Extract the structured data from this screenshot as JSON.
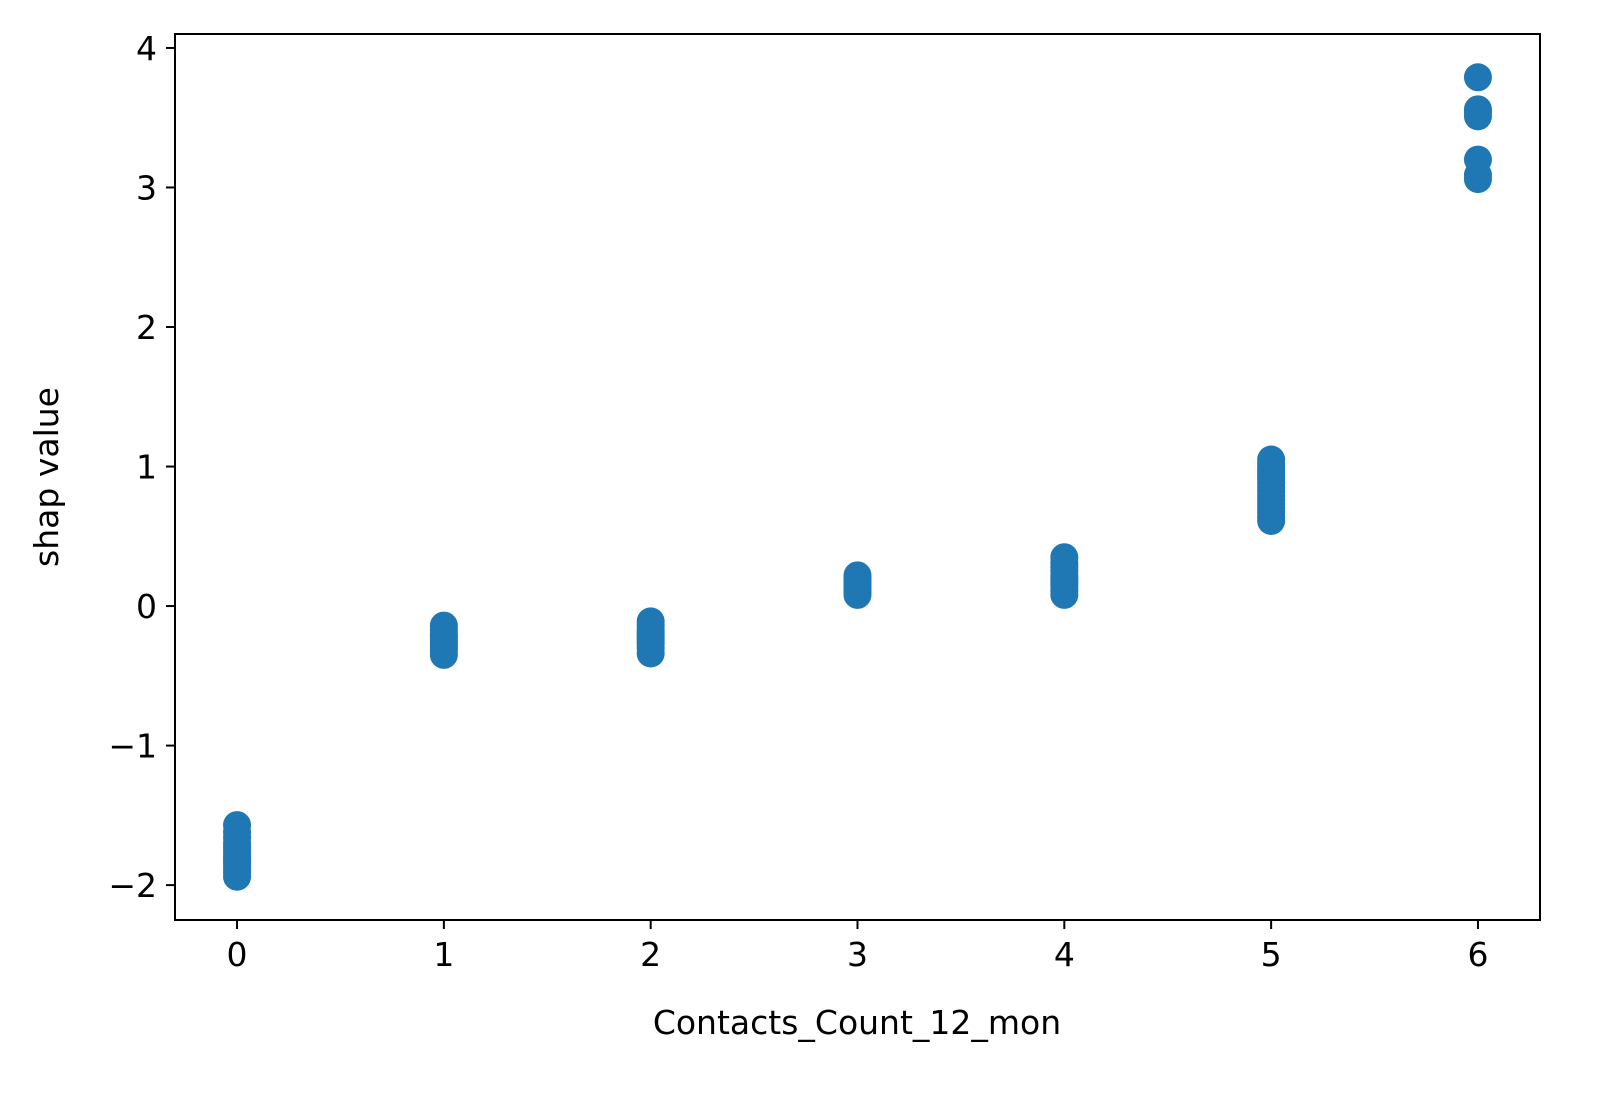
{
  "chart_data": {
    "type": "scatter",
    "title": "",
    "xlabel": "Contacts_Count_12_mon",
    "ylabel": "shap value",
    "xlim": [
      -0.3,
      6.3
    ],
    "ylim": [
      -2.25,
      4.1
    ],
    "grid": false,
    "legend": "none",
    "marker_color": "#1f77b4",
    "x_ticks": [
      {
        "value": 0,
        "label": "0"
      },
      {
        "value": 1,
        "label": "1"
      },
      {
        "value": 2,
        "label": "2"
      },
      {
        "value": 3,
        "label": "3"
      },
      {
        "value": 4,
        "label": "4"
      },
      {
        "value": 5,
        "label": "5"
      },
      {
        "value": 6,
        "label": "6"
      }
    ],
    "y_ticks": [
      {
        "value": -2,
        "label": "−2"
      },
      {
        "value": -1,
        "label": "−1"
      },
      {
        "value": 0,
        "label": "0"
      },
      {
        "value": 1,
        "label": "1"
      },
      {
        "value": 2,
        "label": "2"
      },
      {
        "value": 3,
        "label": "3"
      },
      {
        "value": 4,
        "label": "4"
      }
    ],
    "series": [
      {
        "x": [
          0,
          0,
          0,
          0,
          0,
          0,
          0,
          0,
          0,
          0,
          0,
          0,
          0,
          1,
          1,
          1,
          1,
          1,
          1,
          1,
          1,
          1,
          1,
          2,
          2,
          2,
          2,
          2,
          2,
          2,
          2,
          2,
          2,
          3,
          3,
          3,
          3,
          3,
          3,
          3,
          3,
          4,
          4,
          4,
          4,
          4,
          4,
          4,
          4,
          4,
          4,
          4,
          5,
          5,
          5,
          5,
          5,
          5,
          5,
          5,
          5,
          5,
          5,
          5,
          5,
          5,
          5,
          5,
          5,
          6,
          6,
          6,
          6,
          6,
          6,
          6
        ],
        "y": [
          -1.57,
          -1.62,
          -1.66,
          -1.7,
          -1.73,
          -1.76,
          -1.79,
          -1.81,
          -1.83,
          -1.85,
          -1.88,
          -1.91,
          -1.94,
          -0.14,
          -0.17,
          -0.2,
          -0.22,
          -0.24,
          -0.26,
          -0.28,
          -0.3,
          -0.32,
          -0.35,
          -0.11,
          -0.14,
          -0.17,
          -0.19,
          -0.21,
          -0.23,
          -0.25,
          -0.27,
          -0.3,
          -0.34,
          0.08,
          0.1,
          0.12,
          0.14,
          0.16,
          0.18,
          0.2,
          0.22,
          0.08,
          0.11,
          0.14,
          0.16,
          0.18,
          0.2,
          0.22,
          0.25,
          0.28,
          0.31,
          0.35,
          0.61,
          0.64,
          0.67,
          0.7,
          0.73,
          0.76,
          0.79,
          0.82,
          0.85,
          0.88,
          0.91,
          0.93,
          0.95,
          0.97,
          0.99,
          1.02,
          1.05,
          3.06,
          3.09,
          3.2,
          3.51,
          3.54,
          3.56,
          3.79
        ]
      }
    ]
  }
}
